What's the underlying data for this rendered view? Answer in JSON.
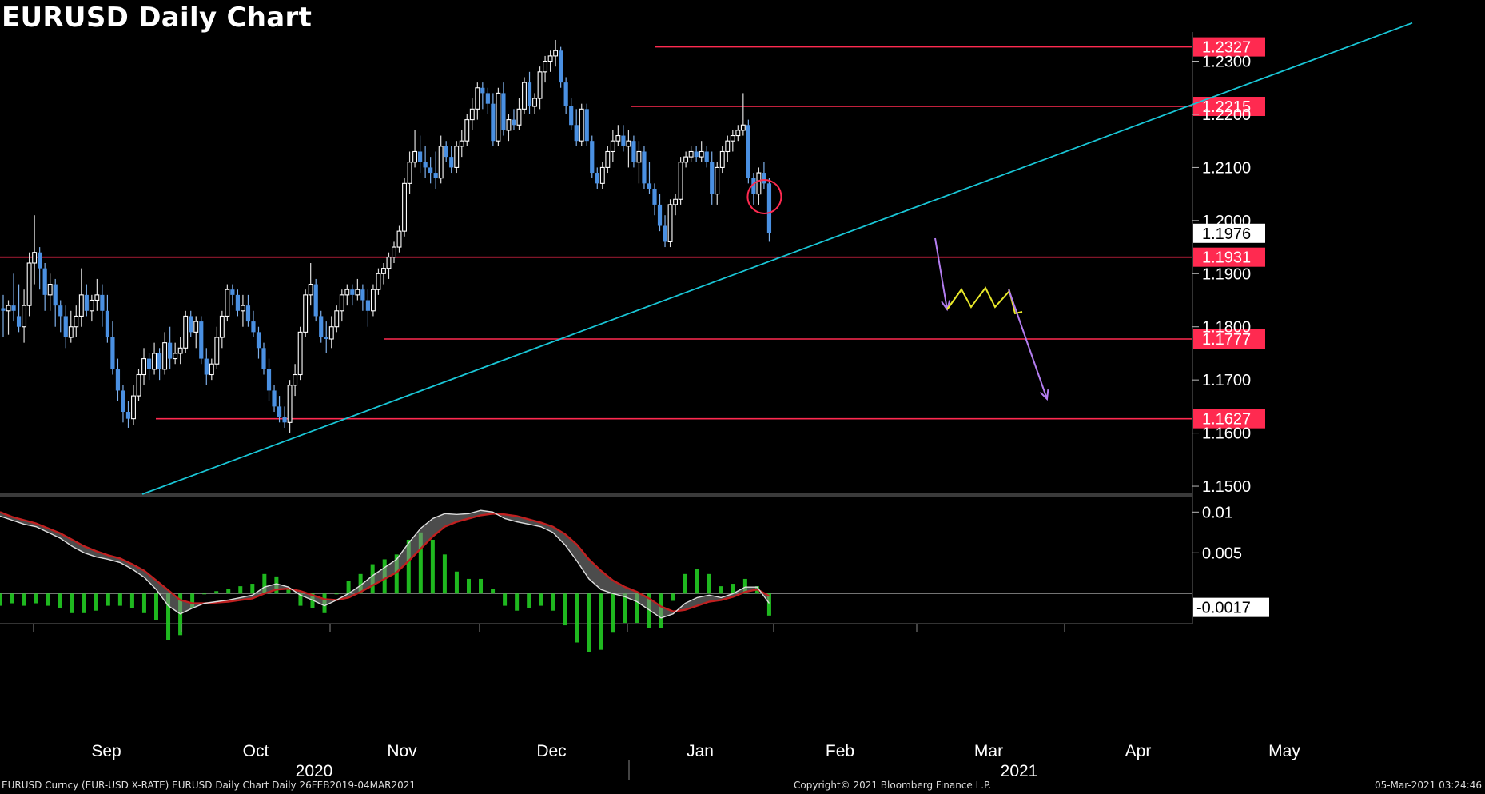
{
  "title": "EURUSD Daily Chart",
  "footer": {
    "left": "EURUSD Curncy (EUR-USD X-RATE) EURUSD Daily Chart  Daily 26FEB2019-04MAR2021",
    "middle": "Copyright© 2021 Bloomberg Finance L.P.",
    "right": "05-Mar-2021 03:24:46"
  },
  "colors": {
    "up_candle": "#ffffff",
    "down_candle": "#4a90e2",
    "level_line": "#ff2a50",
    "trend_line": "#19c6d6",
    "projection_path": "#e8e82a",
    "projection_arrow": "#b37df0",
    "marker_circle": "#ff2a50",
    "macd_fast": "#b0b0b0",
    "macd_slow": "#c02020",
    "histogram": "#22cc22",
    "axis_text": "#ffffff"
  },
  "chart_data": {
    "type": "candlestick",
    "price_axis": {
      "ticks": [
        "1.2300",
        "1.2200",
        "1.2100",
        "1.2000",
        "1.1900",
        "1.1800",
        "1.1700",
        "1.1600",
        "1.1500"
      ],
      "tick_values": [
        1.23,
        1.22,
        1.21,
        1.2,
        1.19,
        1.18,
        1.17,
        1.16,
        1.15
      ],
      "range": [
        1.1485,
        1.2355
      ]
    },
    "time_axis": {
      "months": [
        "Sep",
        "Oct",
        "Nov",
        "Dec",
        "Jan",
        "Feb",
        "Mar",
        "Apr",
        "May"
      ],
      "years": [
        "2020",
        "2021"
      ]
    },
    "levels": [
      {
        "label": "1.2327",
        "value": 1.2327
      },
      {
        "label": "1.2215",
        "value": 1.2215
      },
      {
        "label": "1.1931",
        "value": 1.1931
      },
      {
        "label": "1.1777",
        "value": 1.1777
      },
      {
        "label": "1.1627",
        "value": 1.1627
      }
    ],
    "last_price": {
      "label": "1.1976",
      "value": 1.1976
    },
    "trend_line": {
      "start": [
        "2020-09-07",
        1.1485
      ],
      "end": [
        "2021-05-27",
        1.2372
      ]
    },
    "candles": [
      {
        "o": 1.1835,
        "h": 1.186,
        "l": 1.178,
        "c": 1.183
      },
      {
        "o": 1.183,
        "h": 1.185,
        "l": 1.1785,
        "c": 1.184
      },
      {
        "o": 1.184,
        "h": 1.19,
        "l": 1.181,
        "c": 1.183
      },
      {
        "o": 1.182,
        "h": 1.188,
        "l": 1.179,
        "c": 1.18
      },
      {
        "o": 1.18,
        "h": 1.187,
        "l": 1.177,
        "c": 1.184
      },
      {
        "o": 1.184,
        "h": 1.194,
        "l": 1.182,
        "c": 1.192
      },
      {
        "o": 1.192,
        "h": 1.201,
        "l": 1.188,
        "c": 1.194
      },
      {
        "o": 1.194,
        "h": 1.195,
        "l": 1.187,
        "c": 1.191
      },
      {
        "o": 1.191,
        "h": 1.192,
        "l": 1.183,
        "c": 1.186
      },
      {
        "o": 1.186,
        "h": 1.19,
        "l": 1.183,
        "c": 1.188
      },
      {
        "o": 1.188,
        "h": 1.189,
        "l": 1.18,
        "c": 1.184
      },
      {
        "o": 1.184,
        "h": 1.185,
        "l": 1.179,
        "c": 1.182
      },
      {
        "o": 1.182,
        "h": 1.184,
        "l": 1.176,
        "c": 1.178
      },
      {
        "o": 1.178,
        "h": 1.183,
        "l": 1.177,
        "c": 1.18
      },
      {
        "o": 1.18,
        "h": 1.184,
        "l": 1.178,
        "c": 1.182
      },
      {
        "o": 1.182,
        "h": 1.191,
        "l": 1.18,
        "c": 1.186
      },
      {
        "o": 1.186,
        "h": 1.188,
        "l": 1.182,
        "c": 1.183
      },
      {
        "o": 1.183,
        "h": 1.186,
        "l": 1.181,
        "c": 1.185
      },
      {
        "o": 1.185,
        "h": 1.189,
        "l": 1.183,
        "c": 1.186
      },
      {
        "o": 1.186,
        "h": 1.188,
        "l": 1.18,
        "c": 1.183
      },
      {
        "o": 1.183,
        "h": 1.186,
        "l": 1.177,
        "c": 1.178
      },
      {
        "o": 1.178,
        "h": 1.181,
        "l": 1.171,
        "c": 1.172
      },
      {
        "o": 1.172,
        "h": 1.174,
        "l": 1.166,
        "c": 1.168
      },
      {
        "o": 1.168,
        "h": 1.169,
        "l": 1.162,
        "c": 1.164
      },
      {
        "o": 1.164,
        "h": 1.166,
        "l": 1.161,
        "c": 1.1627
      },
      {
        "o": 1.1627,
        "h": 1.169,
        "l": 1.1615,
        "c": 1.167
      },
      {
        "o": 1.167,
        "h": 1.172,
        "l": 1.166,
        "c": 1.171
      },
      {
        "o": 1.171,
        "h": 1.176,
        "l": 1.169,
        "c": 1.174
      },
      {
        "o": 1.174,
        "h": 1.175,
        "l": 1.17,
        "c": 1.172
      },
      {
        "o": 1.172,
        "h": 1.177,
        "l": 1.171,
        "c": 1.175
      },
      {
        "o": 1.175,
        "h": 1.176,
        "l": 1.17,
        "c": 1.172
      },
      {
        "o": 1.172,
        "h": 1.179,
        "l": 1.171,
        "c": 1.177
      },
      {
        "o": 1.177,
        "h": 1.18,
        "l": 1.172,
        "c": 1.174
      },
      {
        "o": 1.174,
        "h": 1.177,
        "l": 1.173,
        "c": 1.175
      },
      {
        "o": 1.175,
        "h": 1.178,
        "l": 1.173,
        "c": 1.176
      },
      {
        "o": 1.176,
        "h": 1.183,
        "l": 1.175,
        "c": 1.182
      },
      {
        "o": 1.182,
        "h": 1.183,
        "l": 1.178,
        "c": 1.179
      },
      {
        "o": 1.179,
        "h": 1.182,
        "l": 1.176,
        "c": 1.181
      },
      {
        "o": 1.181,
        "h": 1.182,
        "l": 1.173,
        "c": 1.174
      },
      {
        "o": 1.174,
        "h": 1.176,
        "l": 1.169,
        "c": 1.171
      },
      {
        "o": 1.171,
        "h": 1.174,
        "l": 1.17,
        "c": 1.173
      },
      {
        "o": 1.173,
        "h": 1.18,
        "l": 1.172,
        "c": 1.178
      },
      {
        "o": 1.178,
        "h": 1.183,
        "l": 1.176,
        "c": 1.182
      },
      {
        "o": 1.182,
        "h": 1.188,
        "l": 1.181,
        "c": 1.187
      },
      {
        "o": 1.187,
        "h": 1.188,
        "l": 1.184,
        "c": 1.186
      },
      {
        "o": 1.186,
        "h": 1.187,
        "l": 1.182,
        "c": 1.183
      },
      {
        "o": 1.183,
        "h": 1.186,
        "l": 1.18,
        "c": 1.184
      },
      {
        "o": 1.184,
        "h": 1.186,
        "l": 1.18,
        "c": 1.181
      },
      {
        "o": 1.181,
        "h": 1.183,
        "l": 1.178,
        "c": 1.179
      },
      {
        "o": 1.179,
        "h": 1.18,
        "l": 1.174,
        "c": 1.176
      },
      {
        "o": 1.176,
        "h": 1.177,
        "l": 1.171,
        "c": 1.172
      },
      {
        "o": 1.172,
        "h": 1.174,
        "l": 1.166,
        "c": 1.168
      },
      {
        "o": 1.168,
        "h": 1.169,
        "l": 1.164,
        "c": 1.165
      },
      {
        "o": 1.165,
        "h": 1.167,
        "l": 1.162,
        "c": 1.163
      },
      {
        "o": 1.163,
        "h": 1.165,
        "l": 1.161,
        "c": 1.162
      },
      {
        "o": 1.162,
        "h": 1.17,
        "l": 1.16,
        "c": 1.169
      },
      {
        "o": 1.169,
        "h": 1.173,
        "l": 1.167,
        "c": 1.171
      },
      {
        "o": 1.171,
        "h": 1.18,
        "l": 1.17,
        "c": 1.179
      },
      {
        "o": 1.179,
        "h": 1.187,
        "l": 1.178,
        "c": 1.186
      },
      {
        "o": 1.186,
        "h": 1.192,
        "l": 1.184,
        "c": 1.188
      },
      {
        "o": 1.188,
        "h": 1.189,
        "l": 1.181,
        "c": 1.182
      },
      {
        "o": 1.182,
        "h": 1.183,
        "l": 1.177,
        "c": 1.178
      },
      {
        "o": 1.178,
        "h": 1.181,
        "l": 1.175,
        "c": 1.1777
      },
      {
        "o": 1.1777,
        "h": 1.182,
        "l": 1.176,
        "c": 1.18
      },
      {
        "o": 1.18,
        "h": 1.184,
        "l": 1.179,
        "c": 1.183
      },
      {
        "o": 1.183,
        "h": 1.187,
        "l": 1.181,
        "c": 1.186
      },
      {
        "o": 1.186,
        "h": 1.188,
        "l": 1.184,
        "c": 1.187
      },
      {
        "o": 1.187,
        "h": 1.188,
        "l": 1.184,
        "c": 1.186
      },
      {
        "o": 1.186,
        "h": 1.189,
        "l": 1.185,
        "c": 1.187
      },
      {
        "o": 1.187,
        "h": 1.188,
        "l": 1.183,
        "c": 1.185
      },
      {
        "o": 1.185,
        "h": 1.187,
        "l": 1.18,
        "c": 1.183
      },
      {
        "o": 1.183,
        "h": 1.188,
        "l": 1.182,
        "c": 1.187
      },
      {
        "o": 1.187,
        "h": 1.191,
        "l": 1.186,
        "c": 1.19
      },
      {
        "o": 1.19,
        "h": 1.192,
        "l": 1.188,
        "c": 1.191
      },
      {
        "o": 1.191,
        "h": 1.194,
        "l": 1.189,
        "c": 1.1931
      },
      {
        "o": 1.1931,
        "h": 1.196,
        "l": 1.192,
        "c": 1.195
      },
      {
        "o": 1.195,
        "h": 1.199,
        "l": 1.194,
        "c": 1.198
      },
      {
        "o": 1.198,
        "h": 1.208,
        "l": 1.197,
        "c": 1.207
      },
      {
        "o": 1.207,
        "h": 1.213,
        "l": 1.205,
        "c": 1.211
      },
      {
        "o": 1.211,
        "h": 1.217,
        "l": 1.21,
        "c": 1.213
      },
      {
        "o": 1.213,
        "h": 1.216,
        "l": 1.209,
        "c": 1.211
      },
      {
        "o": 1.211,
        "h": 1.214,
        "l": 1.208,
        "c": 1.21
      },
      {
        "o": 1.21,
        "h": 1.212,
        "l": 1.207,
        "c": 1.209
      },
      {
        "o": 1.209,
        "h": 1.213,
        "l": 1.206,
        "c": 1.208
      },
      {
        "o": 1.208,
        "h": 1.216,
        "l": 1.207,
        "c": 1.214
      },
      {
        "o": 1.214,
        "h": 1.215,
        "l": 1.211,
        "c": 1.212
      },
      {
        "o": 1.212,
        "h": 1.214,
        "l": 1.209,
        "c": 1.21
      },
      {
        "o": 1.21,
        "h": 1.215,
        "l": 1.209,
        "c": 1.214
      },
      {
        "o": 1.214,
        "h": 1.217,
        "l": 1.212,
        "c": 1.215
      },
      {
        "o": 1.215,
        "h": 1.22,
        "l": 1.214,
        "c": 1.219
      },
      {
        "o": 1.219,
        "h": 1.223,
        "l": 1.217,
        "c": 1.221
      },
      {
        "o": 1.221,
        "h": 1.226,
        "l": 1.219,
        "c": 1.225
      },
      {
        "o": 1.225,
        "h": 1.226,
        "l": 1.221,
        "c": 1.224
      },
      {
        "o": 1.224,
        "h": 1.225,
        "l": 1.22,
        "c": 1.222
      },
      {
        "o": 1.222,
        "h": 1.224,
        "l": 1.214,
        "c": 1.215
      },
      {
        "o": 1.215,
        "h": 1.225,
        "l": 1.214,
        "c": 1.224
      },
      {
        "o": 1.224,
        "h": 1.226,
        "l": 1.216,
        "c": 1.217
      },
      {
        "o": 1.217,
        "h": 1.22,
        "l": 1.215,
        "c": 1.219
      },
      {
        "o": 1.219,
        "h": 1.221,
        "l": 1.217,
        "c": 1.218
      },
      {
        "o": 1.218,
        "h": 1.223,
        "l": 1.217,
        "c": 1.221
      },
      {
        "o": 1.221,
        "h": 1.227,
        "l": 1.22,
        "c": 1.226
      },
      {
        "o": 1.226,
        "h": 1.228,
        "l": 1.22,
        "c": 1.2215
      },
      {
        "o": 1.2215,
        "h": 1.224,
        "l": 1.22,
        "c": 1.223
      },
      {
        "o": 1.223,
        "h": 1.229,
        "l": 1.221,
        "c": 1.228
      },
      {
        "o": 1.228,
        "h": 1.231,
        "l": 1.226,
        "c": 1.23
      },
      {
        "o": 1.23,
        "h": 1.232,
        "l": 1.228,
        "c": 1.231
      },
      {
        "o": 1.231,
        "h": 1.234,
        "l": 1.229,
        "c": 1.232
      },
      {
        "o": 1.232,
        "h": 1.2327,
        "l": 1.225,
        "c": 1.226
      },
      {
        "o": 1.226,
        "h": 1.227,
        "l": 1.22,
        "c": 1.2215
      },
      {
        "o": 1.2215,
        "h": 1.223,
        "l": 1.217,
        "c": 1.218
      },
      {
        "o": 1.218,
        "h": 1.221,
        "l": 1.214,
        "c": 1.215
      },
      {
        "o": 1.215,
        "h": 1.222,
        "l": 1.214,
        "c": 1.221
      },
      {
        "o": 1.221,
        "h": 1.222,
        "l": 1.214,
        "c": 1.215
      },
      {
        "o": 1.215,
        "h": 1.216,
        "l": 1.208,
        "c": 1.209
      },
      {
        "o": 1.209,
        "h": 1.21,
        "l": 1.206,
        "c": 1.207
      },
      {
        "o": 1.207,
        "h": 1.211,
        "l": 1.206,
        "c": 1.21
      },
      {
        "o": 1.21,
        "h": 1.214,
        "l": 1.209,
        "c": 1.213
      },
      {
        "o": 1.213,
        "h": 1.217,
        "l": 1.211,
        "c": 1.215
      },
      {
        "o": 1.215,
        "h": 1.218,
        "l": 1.214,
        "c": 1.216
      },
      {
        "o": 1.216,
        "h": 1.218,
        "l": 1.213,
        "c": 1.214
      },
      {
        "o": 1.214,
        "h": 1.217,
        "l": 1.21,
        "c": 1.215
      },
      {
        "o": 1.215,
        "h": 1.216,
        "l": 1.21,
        "c": 1.211
      },
      {
        "o": 1.211,
        "h": 1.215,
        "l": 1.207,
        "c": 1.213
      },
      {
        "o": 1.213,
        "h": 1.214,
        "l": 1.206,
        "c": 1.207
      },
      {
        "o": 1.207,
        "h": 1.211,
        "l": 1.205,
        "c": 1.206
      },
      {
        "o": 1.206,
        "h": 1.207,
        "l": 1.201,
        "c": 1.203
      },
      {
        "o": 1.203,
        "h": 1.205,
        "l": 1.198,
        "c": 1.199
      },
      {
        "o": 1.199,
        "h": 1.201,
        "l": 1.195,
        "c": 1.196
      },
      {
        "o": 1.196,
        "h": 1.204,
        "l": 1.195,
        "c": 1.203
      },
      {
        "o": 1.203,
        "h": 1.205,
        "l": 1.201,
        "c": 1.204
      },
      {
        "o": 1.204,
        "h": 1.212,
        "l": 1.203,
        "c": 1.211
      },
      {
        "o": 1.211,
        "h": 1.213,
        "l": 1.21,
        "c": 1.212
      },
      {
        "o": 1.212,
        "h": 1.214,
        "l": 1.211,
        "c": 1.213
      },
      {
        "o": 1.213,
        "h": 1.214,
        "l": 1.211,
        "c": 1.212
      },
      {
        "o": 1.212,
        "h": 1.215,
        "l": 1.211,
        "c": 1.213
      },
      {
        "o": 1.213,
        "h": 1.214,
        "l": 1.21,
        "c": 1.211
      },
      {
        "o": 1.211,
        "h": 1.213,
        "l": 1.203,
        "c": 1.205
      },
      {
        "o": 1.205,
        "h": 1.211,
        "l": 1.203,
        "c": 1.21
      },
      {
        "o": 1.21,
        "h": 1.214,
        "l": 1.209,
        "c": 1.213
      },
      {
        "o": 1.213,
        "h": 1.216,
        "l": 1.211,
        "c": 1.215
      },
      {
        "o": 1.215,
        "h": 1.217,
        "l": 1.213,
        "c": 1.216
      },
      {
        "o": 1.216,
        "h": 1.218,
        "l": 1.215,
        "c": 1.217
      },
      {
        "o": 1.217,
        "h": 1.224,
        "l": 1.216,
        "c": 1.218
      },
      {
        "o": 1.218,
        "h": 1.219,
        "l": 1.207,
        "c": 1.208
      },
      {
        "o": 1.208,
        "h": 1.209,
        "l": 1.203,
        "c": 1.205
      },
      {
        "o": 1.205,
        "h": 1.21,
        "l": 1.203,
        "c": 1.209
      },
      {
        "o": 1.209,
        "h": 1.211,
        "l": 1.206,
        "c": 1.207
      },
      {
        "o": 1.207,
        "h": 1.208,
        "l": 1.196,
        "c": 1.1976
      }
    ],
    "macd": {
      "axis_ticks": [
        "0.01",
        "0.005",
        "-0.0017"
      ],
      "tick_values": [
        0.01,
        0.005
      ],
      "range": [
        -0.0035,
        0.0115
      ],
      "last_value": {
        "label": "-0.0017",
        "value": -0.0017
      },
      "fast": [
        0.0095,
        0.009,
        0.0085,
        0.0082,
        0.0075,
        0.0068,
        0.0058,
        0.005,
        0.0045,
        0.0042,
        0.0038,
        0.003,
        0.002,
        0.0005,
        -0.0015,
        -0.0025,
        -0.0018,
        -0.0012,
        -0.001,
        -0.0008,
        -0.0005,
        -0.0002,
        0.0008,
        0.0012,
        0.0008,
        -0.0002,
        -0.0008,
        -0.0015,
        -0.0008,
        0.0,
        0.001,
        0.0022,
        0.0032,
        0.0042,
        0.0062,
        0.008,
        0.0092,
        0.0098,
        0.0097,
        0.0098,
        0.0102,
        0.01,
        0.0092,
        0.0088,
        0.0085,
        0.0082,
        0.0075,
        0.006,
        0.004,
        0.0018,
        0.0005,
        0.0,
        -0.0004,
        -0.001,
        -0.002,
        -0.003,
        -0.0025,
        -0.0012,
        -0.0005,
        -0.0002,
        -0.0005,
        0.0,
        0.0008,
        0.0008,
        -0.0012
      ],
      "slow": [
        0.01,
        0.0094,
        0.009,
        0.0086,
        0.008,
        0.0074,
        0.0066,
        0.0058,
        0.0052,
        0.0047,
        0.0043,
        0.0036,
        0.0028,
        0.0016,
        0.0004,
        -0.0008,
        -0.0012,
        -0.0012,
        -0.0011,
        -0.001,
        -0.0008,
        -0.0006,
        0.0,
        0.0005,
        0.0006,
        0.0003,
        -0.0002,
        -0.0007,
        -0.0008,
        -0.0005,
        0.0002,
        0.001,
        0.0018,
        0.0026,
        0.004,
        0.0055,
        0.007,
        0.0082,
        0.0088,
        0.0092,
        0.0096,
        0.0098,
        0.0097,
        0.0095,
        0.0091,
        0.0087,
        0.0082,
        0.0073,
        0.006,
        0.0042,
        0.0028,
        0.0016,
        0.0008,
        0.0002,
        -0.0006,
        -0.0016,
        -0.0022,
        -0.002,
        -0.0015,
        -0.001,
        -0.0008,
        -0.0004,
        0.0002,
        0.0005,
        -0.0003
      ]
    }
  }
}
